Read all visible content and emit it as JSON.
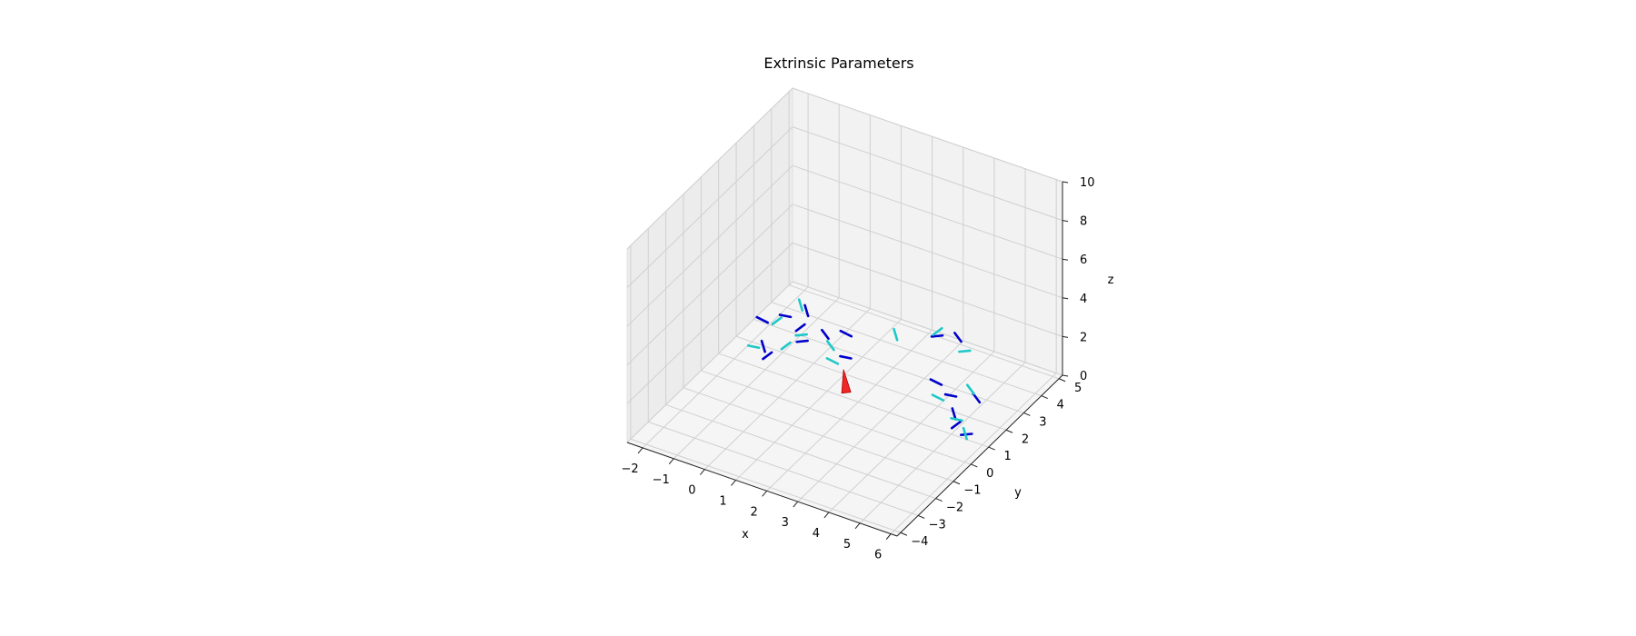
{
  "chart_data": {
    "type": "scatter3d",
    "title": "Extrinsic Parameters",
    "xlabel": "x",
    "ylabel": "y",
    "zlabel": "z",
    "xlim": [
      -2.5,
      6.2
    ],
    "ylim": [
      -4.2,
      5.2
    ],
    "zlim": [
      0,
      10
    ],
    "xticks": [
      "−2",
      "−1",
      "0",
      "1",
      "2",
      "3",
      "4",
      "5",
      "6"
    ],
    "yticks": [
      "−4",
      "−3",
      "−2",
      "−1",
      "0",
      "1",
      "2",
      "3",
      "4",
      "5"
    ],
    "zticks": [
      "0",
      "2",
      "4",
      "6",
      "8",
      "10"
    ],
    "grid": true,
    "colors": {
      "blue": "#0000cc",
      "cyan": "#1ec8c8",
      "camera": "#ee1111",
      "pane": "#f2f2f2",
      "grid": "#d0d0d0"
    },
    "camera_marker": {
      "x": 1.5,
      "y": 1.2,
      "z": 0
    },
    "series": [
      {
        "color": "blue",
        "points": [
          [
            -2.0,
            2.6,
            0.6
          ],
          [
            -1.6,
            3.2,
            0.5
          ],
          [
            -1.2,
            3.7,
            0.55
          ],
          [
            -1.0,
            3.0,
            0.4
          ],
          [
            -0.6,
            2.4,
            0.45
          ],
          [
            -0.2,
            3.0,
            0.5
          ],
          [
            0.3,
            3.3,
            0.55
          ],
          [
            0.8,
            2.4,
            0.4
          ],
          [
            -1.4,
            1.6,
            0.45
          ],
          [
            -1.1,
            1.3,
            0.4
          ],
          [
            2.5,
            4.6,
            0.5
          ],
          [
            3.0,
            4.9,
            0.45
          ],
          [
            3.6,
            2.6,
            0.5
          ],
          [
            4.3,
            2.2,
            0.55
          ],
          [
            4.8,
            1.5,
            0.5
          ],
          [
            5.1,
            1.1,
            0.45
          ],
          [
            5.6,
            0.8,
            0.5
          ],
          [
            4.9,
            2.6,
            0.4
          ]
        ]
      },
      {
        "color": "cyan",
        "points": [
          [
            -1.5,
            3.9,
            0.5
          ],
          [
            -1.7,
            2.9,
            0.45
          ],
          [
            -0.8,
            2.7,
            0.4
          ],
          [
            0.2,
            2.6,
            0.5
          ],
          [
            0.6,
            2.0,
            0.45
          ],
          [
            -1.6,
            1.4,
            0.5
          ],
          [
            1.5,
            4.0,
            0.55
          ],
          [
            2.4,
            4.8,
            0.5
          ],
          [
            3.5,
            4.4,
            0.45
          ],
          [
            4.6,
            2.8,
            0.5
          ],
          [
            4.0,
            2.0,
            0.45
          ],
          [
            5.0,
            1.3,
            0.5
          ],
          [
            5.5,
            0.9,
            0.4
          ],
          [
            -0.9,
            2.0,
            0.4
          ]
        ]
      }
    ]
  }
}
